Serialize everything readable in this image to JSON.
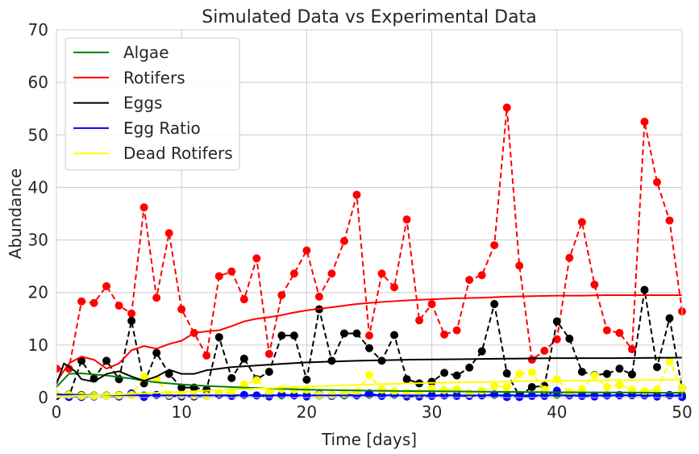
{
  "chart_data": {
    "type": "line",
    "title": "Simulated Data vs Experimental Data",
    "xlabel": "Time [days]",
    "ylabel": "Abundance",
    "xlim": [
      0,
      50
    ],
    "ylim": [
      0,
      70
    ],
    "xticks": [
      0,
      10,
      20,
      30,
      40,
      50
    ],
    "yticks": [
      0,
      10,
      20,
      30,
      40,
      50,
      60,
      70
    ],
    "grid": true,
    "legend_position": "top-left",
    "simulated": [
      {
        "name": "Algae",
        "color": "#008000",
        "x": [
          0,
          1,
          2,
          3,
          4,
          5,
          6,
          7,
          8,
          10,
          12,
          15,
          20,
          25,
          30,
          35,
          40,
          45,
          50
        ],
        "y": [
          2.0,
          4.5,
          4.6,
          4.4,
          4.2,
          3.9,
          3.6,
          3.2,
          2.9,
          2.5,
          2.2,
          1.9,
          1.5,
          1.3,
          1.2,
          1.1,
          1.0,
          0.95,
          0.9
        ]
      },
      {
        "name": "Rotifers",
        "color": "#ff0000",
        "x": [
          0,
          1,
          2,
          3,
          4,
          5,
          6,
          7,
          8,
          9,
          10,
          11,
          12,
          13,
          14,
          15,
          16,
          17,
          18,
          19,
          20,
          22,
          24,
          26,
          28,
          30,
          32,
          34,
          36,
          38,
          40,
          42,
          44,
          46,
          48,
          50
        ],
        "y": [
          3,
          6.5,
          7.8,
          7.2,
          5.5,
          6.5,
          9,
          9.8,
          9.3,
          10.2,
          10.8,
          12.3,
          12.6,
          12.8,
          13.6,
          14.5,
          15.0,
          15.3,
          15.7,
          16.2,
          16.6,
          17.2,
          17.8,
          18.2,
          18.5,
          18.7,
          18.9,
          19.0,
          19.2,
          19.3,
          19.4,
          19.4,
          19.5,
          19.5,
          19.5,
          19.5
        ]
      },
      {
        "name": "Eggs",
        "color": "#000000",
        "x": [
          0,
          0.6,
          1.5,
          2,
          3,
          4,
          5,
          6,
          7,
          8,
          9,
          10,
          11,
          12,
          14,
          16,
          18,
          20,
          24,
          28,
          32,
          36,
          40,
          44,
          50
        ],
        "y": [
          2.5,
          6.5,
          5.0,
          3.5,
          3.0,
          4.5,
          5.0,
          4.0,
          3.2,
          4.0,
          5.3,
          4.5,
          4.5,
          5.2,
          5.8,
          6.1,
          6.4,
          6.7,
          7.0,
          7.2,
          7.3,
          7.4,
          7.5,
          7.5,
          7.6
        ]
      },
      {
        "name": "Egg Ratio",
        "color": "#0000ff",
        "x": [
          0,
          2,
          5,
          10,
          20,
          30,
          40,
          50
        ],
        "y": [
          0.6,
          0.5,
          0.45,
          0.4,
          0.4,
          0.4,
          0.4,
          0.4
        ]
      },
      {
        "name": "Dead Rotifers",
        "color": "#ffff00",
        "x": [
          0,
          5,
          10,
          15,
          20,
          25,
          30,
          35,
          40,
          45,
          50
        ],
        "y": [
          0.2,
          0.6,
          1.1,
          1.6,
          2.1,
          2.5,
          2.8,
          3.0,
          3.2,
          3.3,
          3.4
        ]
      }
    ],
    "experimental": [
      {
        "color": "#008000",
        "x": [
          0,
          1,
          2,
          3,
          4,
          5,
          6,
          7,
          8,
          9,
          10,
          11,
          12,
          13,
          14,
          15,
          16,
          17,
          18,
          19,
          20,
          21,
          22,
          23,
          24,
          25,
          26,
          27,
          28,
          29,
          30,
          31,
          32,
          33,
          34,
          35,
          36,
          37,
          38,
          39,
          40,
          41,
          42,
          43,
          44,
          45,
          46,
          47,
          48,
          49,
          50
        ],
        "y": [
          0.3,
          0.6,
          0.5,
          0.4,
          0.4,
          0.5,
          0.5,
          0.4,
          0.5,
          0.4,
          0.5,
          0.4,
          0.4,
          0.5,
          0.4,
          0.5,
          0.4,
          0.5,
          0.4,
          0.4,
          0.5,
          0.4,
          0.5,
          0.4,
          0.4,
          0.5,
          0.4,
          0.5,
          0.4,
          0.4,
          0.5,
          0.4,
          0.5,
          0.4,
          0.4,
          0.5,
          0.4,
          0.5,
          0.4,
          0.4,
          0.5,
          0.4,
          0.5,
          0.4,
          0.4,
          0.5,
          0.4,
          0.5,
          0.4,
          0.4,
          0.5
        ]
      },
      {
        "color": "#ff0000",
        "x": [
          0,
          1,
          2,
          3,
          4,
          5,
          6,
          7,
          8,
          9,
          10,
          11,
          12,
          13,
          14,
          15,
          16,
          17,
          18,
          19,
          20,
          21,
          22,
          23,
          24,
          25,
          26,
          27,
          28,
          29,
          30,
          31,
          32,
          33,
          34,
          35,
          36,
          37,
          38,
          39,
          40,
          41,
          42,
          43,
          44,
          45,
          46,
          47,
          48,
          49,
          50
        ],
        "y": [
          5.5,
          5.5,
          18.3,
          18,
          21.2,
          17.5,
          16,
          36.2,
          19,
          31.3,
          16.8,
          12.3,
          8,
          23.1,
          24,
          18.7,
          26.5,
          8.3,
          19.5,
          23.6,
          28,
          19.2,
          23.6,
          29.8,
          38.6,
          11.8,
          23.6,
          21,
          33.9,
          14.7,
          17.8,
          12,
          12.8,
          22.4,
          23.3,
          29,
          55.2,
          25.1,
          7.2,
          8.9,
          11.1,
          26.6,
          33.4,
          21.5,
          12.8,
          12.3,
          9.2,
          52.5,
          41,
          33.7,
          16.4
        ]
      },
      {
        "color": "#000000",
        "x": [
          0,
          1,
          2,
          3,
          4,
          5,
          6,
          7,
          8,
          9,
          10,
          11,
          12,
          13,
          14,
          15,
          16,
          17,
          18,
          19,
          20,
          21,
          22,
          23,
          24,
          25,
          26,
          27,
          28,
          29,
          30,
          31,
          32,
          33,
          34,
          35,
          36,
          37,
          38,
          39,
          40,
          41,
          42,
          43,
          44,
          45,
          46,
          47,
          48,
          49,
          50
        ],
        "y": [
          0.3,
          0.2,
          7,
          3.6,
          7,
          3.5,
          14.6,
          2.7,
          8.5,
          4.5,
          1.9,
          1.9,
          1.5,
          11.5,
          3.7,
          7.4,
          3.5,
          4.9,
          11.8,
          11.8,
          3.4,
          16.8,
          7,
          12.2,
          12.2,
          9.4,
          7,
          11.9,
          3.5,
          2.7,
          3,
          4.7,
          4.2,
          5.7,
          8.8,
          17.8,
          4.6,
          0.3,
          2,
          2.2,
          14.5,
          11.2,
          4.9,
          4.3,
          4.5,
          5.5,
          4.4,
          20.5,
          5.8,
          15.1,
          1.8
        ]
      },
      {
        "color": "#0000ff",
        "x": [
          0,
          1,
          2,
          3,
          4,
          5,
          6,
          7,
          8,
          9,
          10,
          11,
          12,
          13,
          14,
          15,
          16,
          17,
          18,
          19,
          20,
          21,
          22,
          23,
          24,
          25,
          26,
          27,
          28,
          29,
          30,
          31,
          32,
          33,
          34,
          35,
          36,
          37,
          38,
          39,
          40,
          41,
          42,
          43,
          44,
          45,
          46,
          47,
          48,
          49,
          50
        ],
        "y": [
          0.5,
          0.1,
          0.1,
          0.2,
          0.3,
          0.2,
          0.8,
          0.1,
          0.5,
          0.3,
          0.2,
          0.2,
          0.3,
          0.5,
          0.3,
          0.5,
          0.4,
          0.2,
          0.6,
          0.4,
          0.2,
          0.6,
          0.3,
          0.6,
          0.4,
          0.8,
          0.3,
          0.6,
          0.2,
          0.2,
          0.3,
          0.4,
          0.3,
          0.3,
          0.4,
          0.6,
          0.1,
          0.1,
          0.3,
          0.3,
          1.3,
          0.4,
          0.3,
          0.2,
          0.4,
          0.4,
          0.5,
          0.4,
          0.2,
          0.5,
          0.1
        ]
      },
      {
        "color": "#ffff00",
        "x": [
          0,
          1,
          2,
          3,
          4,
          5,
          6,
          7,
          8,
          9,
          10,
          11,
          12,
          13,
          14,
          15,
          16,
          17,
          18,
          19,
          20,
          21,
          22,
          23,
          24,
          25,
          26,
          27,
          28,
          29,
          30,
          31,
          32,
          33,
          34,
          35,
          36,
          37,
          38,
          39,
          40,
          41,
          42,
          43,
          44,
          45,
          46,
          47,
          48,
          49,
          50
        ],
        "y": [
          0.6,
          0.5,
          0.3,
          0.3,
          0.3,
          0.4,
          0.5,
          4,
          3.5,
          0.5,
          0.5,
          0.4,
          0.3,
          0.9,
          1,
          2.5,
          3.3,
          1,
          1.6,
          1.5,
          1.5,
          0.5,
          0.5,
          0.8,
          1,
          4.3,
          1.5,
          1.2,
          0.9,
          0.9,
          1.7,
          1.4,
          1.6,
          0.8,
          1.3,
          2.2,
          2,
          4.5,
          4.8,
          1.5,
          3.5,
          1,
          1.6,
          4.2,
          2,
          2.4,
          1.5,
          1.2,
          1.5,
          6.8,
          1.8
        ]
      }
    ]
  }
}
